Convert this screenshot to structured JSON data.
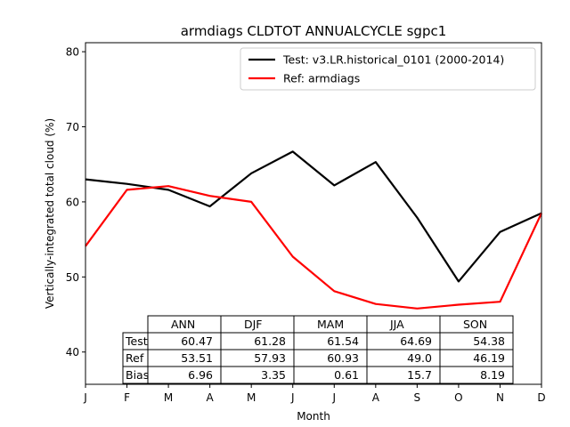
{
  "chart_data": {
    "type": "line",
    "title": "armdiags CLDTOT ANNUALCYCLE sgpc1",
    "xlabel": "Month",
    "ylabel": "Vertically-integrated total cloud (%)",
    "categories": [
      "J",
      "F",
      "M",
      "A",
      "M",
      "J",
      "J",
      "A",
      "S",
      "O",
      "N",
      "D"
    ],
    "ylim": [
      35.7,
      81.2
    ],
    "yticks": [
      40,
      50,
      60,
      70,
      80
    ],
    "grid": false,
    "legend_position": "top-right",
    "series": [
      {
        "name": "Test: v3.LR.historical_0101 (2000-2014)",
        "color": "#000000",
        "values": [
          63.0,
          62.4,
          61.6,
          59.4,
          63.8,
          66.7,
          62.2,
          65.3,
          57.9,
          49.4,
          56.0,
          58.5
        ]
      },
      {
        "name": "Ref: armdiags",
        "color": "#ff0000",
        "values": [
          54.1,
          61.6,
          62.1,
          60.8,
          60.0,
          52.7,
          48.1,
          46.4,
          45.8,
          46.3,
          46.7,
          58.5
        ]
      }
    ],
    "table": {
      "columns": [
        "ANN",
        "DJF",
        "MAM",
        "JJA",
        "SON"
      ],
      "rows": [
        {
          "label": "Test",
          "values": [
            "60.47",
            "61.28",
            "61.54",
            "64.69",
            "54.38"
          ]
        },
        {
          "label": "Ref",
          "values": [
            "53.51",
            "57.93",
            "60.93",
            "49.0",
            "46.19"
          ]
        },
        {
          "label": "Bias",
          "values": [
            "6.96",
            "3.35",
            "0.61",
            "15.7",
            "8.19"
          ]
        }
      ]
    }
  }
}
